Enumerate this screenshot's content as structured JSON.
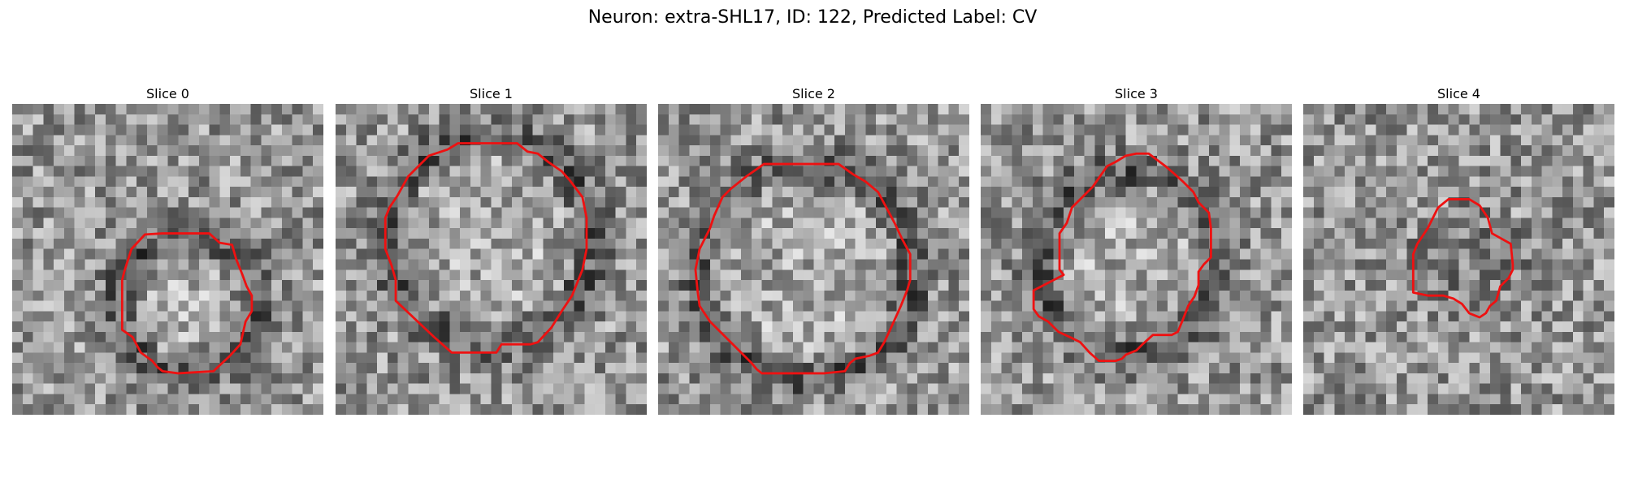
{
  "title": "Neuron: extra-SHL17, ID: 122, Predicted Label: CV",
  "contour_color": "#ee1111",
  "grid_size": 30,
  "panels": [
    {
      "label": "Slice 0",
      "seed": 11,
      "dark_ring": true,
      "contour": [
        [
          11.5,
          14.0
        ],
        [
          12.8,
          12.6
        ],
        [
          14.5,
          12.5
        ],
        [
          19.0,
          12.5
        ],
        [
          20.0,
          13.4
        ],
        [
          21.2,
          13.6
        ],
        [
          21.6,
          15.0
        ],
        [
          22.2,
          16.5
        ],
        [
          22.6,
          17.6
        ],
        [
          23.1,
          18.5
        ],
        [
          23.1,
          20.0
        ],
        [
          22.5,
          21.0
        ],
        [
          22.0,
          23.2
        ],
        [
          21.0,
          24.3
        ],
        [
          19.4,
          25.8
        ],
        [
          16.0,
          26.0
        ],
        [
          14.5,
          25.8
        ],
        [
          14.0,
          25.4
        ],
        [
          13.5,
          24.8
        ],
        [
          12.4,
          24.0
        ],
        [
          11.6,
          22.5
        ],
        [
          10.6,
          21.8
        ],
        [
          10.6,
          19.2
        ],
        [
          10.6,
          17.0
        ],
        [
          10.8,
          16.2
        ]
      ]
    },
    {
      "label": "Slice 1",
      "seed": 23,
      "dark_ring": true,
      "contour": [
        [
          8.0,
          6.0
        ],
        [
          9.0,
          5.0
        ],
        [
          10.8,
          4.4
        ],
        [
          11.8,
          3.8
        ],
        [
          17.5,
          3.8
        ],
        [
          18.5,
          4.6
        ],
        [
          19.5,
          4.8
        ],
        [
          20.5,
          5.6
        ],
        [
          21.8,
          6.5
        ],
        [
          22.6,
          7.4
        ],
        [
          23.8,
          9.0
        ],
        [
          24.2,
          11.0
        ],
        [
          24.2,
          14.0
        ],
        [
          23.8,
          16.0
        ],
        [
          22.8,
          18.5
        ],
        [
          21.8,
          20.0
        ],
        [
          20.8,
          21.6
        ],
        [
          19.5,
          23.0
        ],
        [
          18.8,
          23.2
        ],
        [
          16.0,
          23.2
        ],
        [
          15.5,
          24.0
        ],
        [
          11.2,
          24.0
        ],
        [
          9.5,
          22.5
        ],
        [
          5.8,
          19.0
        ],
        [
          5.8,
          17.0
        ],
        [
          5.4,
          15.6
        ],
        [
          4.8,
          14.0
        ],
        [
          4.8,
          11.0
        ],
        [
          5.2,
          10.0
        ],
        [
          6.0,
          8.8
        ],
        [
          7.0,
          7.0
        ]
      ]
    },
    {
      "label": "Slice 2",
      "seed": 37,
      "dark_ring": true,
      "contour": [
        [
          10.2,
          5.8
        ],
        [
          12.0,
          5.8
        ],
        [
          17.4,
          5.8
        ],
        [
          18.8,
          6.8
        ],
        [
          20.0,
          7.5
        ],
        [
          21.2,
          8.5
        ],
        [
          22.0,
          10.0
        ],
        [
          22.8,
          11.5
        ],
        [
          23.5,
          13.0
        ],
        [
          24.3,
          14.5
        ],
        [
          24.3,
          17.0
        ],
        [
          24.0,
          18.0
        ],
        [
          23.4,
          19.5
        ],
        [
          22.5,
          21.5
        ],
        [
          21.8,
          23.0
        ],
        [
          21.2,
          24.0
        ],
        [
          20.4,
          24.3
        ],
        [
          19.0,
          24.6
        ],
        [
          18.5,
          25.0
        ],
        [
          18.0,
          25.8
        ],
        [
          16.0,
          26.0
        ],
        [
          10.0,
          26.0
        ],
        [
          9.5,
          25.6
        ],
        [
          9.0,
          25.0
        ],
        [
          8.0,
          24.0
        ],
        [
          6.5,
          22.5
        ],
        [
          5.0,
          21.0
        ],
        [
          4.0,
          19.5
        ],
        [
          3.8,
          18.0
        ],
        [
          3.6,
          16.0
        ],
        [
          4.0,
          14.0
        ],
        [
          5.0,
          12.0
        ],
        [
          5.4,
          10.8
        ],
        [
          6.2,
          9.0
        ],
        [
          7.0,
          8.2
        ],
        [
          8.5,
          7.0
        ],
        [
          9.5,
          6.3
        ]
      ]
    },
    {
      "label": "Slice 3",
      "seed": 51,
      "dark_ring": true,
      "contour": [
        [
          14.0,
          5.0
        ],
        [
          15.0,
          4.8
        ],
        [
          16.2,
          4.8
        ],
        [
          17.0,
          5.4
        ],
        [
          17.8,
          6.0
        ],
        [
          18.5,
          6.6
        ],
        [
          19.5,
          7.5
        ],
        [
          20.5,
          8.5
        ],
        [
          21.0,
          9.5
        ],
        [
          22.0,
          10.5
        ],
        [
          22.2,
          12.0
        ],
        [
          22.2,
          14.8
        ],
        [
          21.5,
          15.5
        ],
        [
          21.0,
          16.2
        ],
        [
          21.0,
          17.5
        ],
        [
          20.6,
          18.6
        ],
        [
          20.0,
          19.5
        ],
        [
          19.5,
          20.8
        ],
        [
          19.0,
          22.0
        ],
        [
          18.4,
          22.3
        ],
        [
          16.6,
          22.3
        ],
        [
          15.6,
          23.2
        ],
        [
          15.0,
          23.8
        ],
        [
          14.0,
          24.2
        ],
        [
          13.6,
          24.6
        ],
        [
          13.0,
          24.8
        ],
        [
          11.4,
          24.8
        ],
        [
          10.5,
          24.0
        ],
        [
          9.6,
          23.0
        ],
        [
          8.8,
          22.6
        ],
        [
          7.5,
          22.0
        ],
        [
          6.5,
          21.0
        ],
        [
          5.6,
          20.5
        ],
        [
          5.1,
          19.8
        ],
        [
          5.1,
          18.0
        ],
        [
          8.0,
          16.5
        ],
        [
          7.6,
          16.0
        ],
        [
          7.6,
          12.5
        ],
        [
          8.3,
          11.5
        ],
        [
          8.8,
          10.0
        ],
        [
          9.8,
          9.0
        ],
        [
          10.8,
          8.0
        ],
        [
          11.5,
          7.0
        ],
        [
          12.2,
          6.0
        ],
        [
          13.0,
          5.6
        ]
      ]
    },
    {
      "label": "Slice 4",
      "seed": 67,
      "dark_ring": false,
      "contour": [
        [
          13.0,
          10.0
        ],
        [
          14.0,
          9.2
        ],
        [
          15.0,
          9.2
        ],
        [
          16.0,
          9.2
        ],
        [
          17.0,
          9.8
        ],
        [
          17.8,
          11.0
        ],
        [
          18.2,
          12.5
        ],
        [
          20.0,
          13.5
        ],
        [
          20.2,
          15.5
        ],
        [
          20.2,
          16.0
        ],
        [
          19.8,
          16.8
        ],
        [
          19.0,
          17.6
        ],
        [
          18.6,
          19.0
        ],
        [
          18.0,
          19.5
        ],
        [
          17.6,
          20.2
        ],
        [
          17.0,
          20.6
        ],
        [
          16.0,
          20.2
        ],
        [
          15.3,
          19.3
        ],
        [
          14.5,
          18.8
        ],
        [
          13.5,
          18.5
        ],
        [
          12.0,
          18.5
        ],
        [
          10.6,
          18.2
        ],
        [
          10.6,
          14.5
        ],
        [
          11.0,
          13.5
        ],
        [
          12.0,
          12.0
        ]
      ]
    }
  ]
}
